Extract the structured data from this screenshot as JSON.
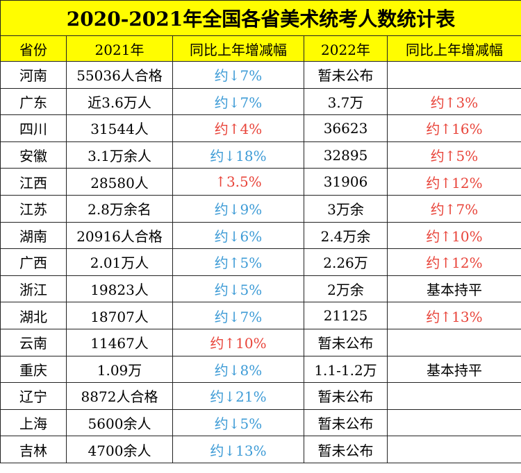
{
  "title": "2020-2021年全国各省美术统考人数统计表",
  "header": [
    "省份",
    "2021年",
    "同比上年增减幅",
    "2022年",
    "同比上年增减幅"
  ],
  "rows": [
    {
      "province": "河南",
      "y2021": "55036人合格",
      "change2021": {
        "text": "约↓7%",
        "color": "#3d9bd6"
      },
      "y2022": "暂未公布"
    },
    {
      "province": "广东",
      "y2021": "近3.6万人",
      "change2021": {
        "text": "约↓7%",
        "color": "#3d9bd6"
      },
      "y2022": "3.7万",
      "change2022": {
        "text": "约↑3%",
        "color": "#e8443a"
      }
    },
    {
      "province": "四川",
      "y2021": "31544人",
      "change2021": {
        "text": "约↑4%",
        "color": "#e8443a"
      },
      "y2022": "36623",
      "change2022": {
        "text": "约↑16%",
        "color": "#e8443a"
      }
    },
    {
      "province": "安徽",
      "y2021": "3.1万余人",
      "change2021": {
        "text": "约↓18%",
        "color": "#3d9bd6"
      },
      "y2022": "32895",
      "change2022": {
        "text": "约↑5%",
        "color": "#e8443a"
      }
    },
    {
      "province": "江西",
      "y2021": "28580人",
      "change2021": {
        "text": "↑3.5%",
        "color": "#e8443a"
      },
      "y2022": "31906",
      "change2022": {
        "text": "约↑12%",
        "color": "#e8443a"
      }
    },
    {
      "province": "江苏",
      "y2021": "2.8万余名",
      "change2021": {
        "text": "约↓9%",
        "color": "#3d9bd6"
      },
      "y2022": "3万余",
      "change2022": {
        "text": "约↑7%",
        "color": "#e8443a"
      }
    },
    {
      "province": "湖南",
      "y2021": "20916人合格",
      "change2021": {
        "text": "约↓6%",
        "color": "#3d9bd6"
      },
      "y2022": "2.4万余",
      "change2022": {
        "text": "约↑10%",
        "color": "#e8443a"
      }
    },
    {
      "province": "广西",
      "y2021": "2.01万人",
      "change2021": {
        "text": "约↑5%",
        "color": "#3d9bd6"
      },
      "y2022": "2.26万",
      "change2022": {
        "text": "约↑12%",
        "color": "#e8443a"
      }
    },
    {
      "province": "浙江",
      "y2021": "19823人",
      "change2021": {
        "text": "约↓5%",
        "color": "#3d9bd6"
      },
      "y2022": "2万余",
      "change2022": {
        "text": "基本持平",
        "color": "#000000"
      }
    },
    {
      "province": "湖北",
      "y2021": "18707人",
      "change2021": {
        "text": "约↓7%",
        "color": "#3d9bd6"
      },
      "y2022": "21125",
      "change2022": {
        "text": "约↑13%",
        "color": "#e8443a"
      }
    },
    {
      "province": "云南",
      "y2021": "11467人",
      "change2021": {
        "text": "约↑10%",
        "color": "#e8443a"
      },
      "y2022": "暂未公布"
    },
    {
      "province": "重庆",
      "y2021": "1.09万",
      "change2021": {
        "text": "约↓8%",
        "color": "#3d9bd6"
      },
      "y2022": "1.1-1.2万",
      "change2022": {
        "text": "基本持平",
        "color": "#000000"
      }
    },
    {
      "province": "辽宁",
      "y2021": "8872人合格",
      "change2021": {
        "text": "约↓21%",
        "color": "#3d9bd6"
      },
      "y2022": "暂未公布"
    },
    {
      "province": "上海",
      "y2021": "5600余人",
      "change2021": {
        "text": "约↓5%",
        "color": "#3d9bd6"
      },
      "y2022": "暂未公布"
    },
    {
      "province": "吉林",
      "y2021": "4700余人",
      "change2021": {
        "text": "约↓13%",
        "color": "#3d9bd6"
      },
      "y2022": "暂未公布"
    }
  ]
}
